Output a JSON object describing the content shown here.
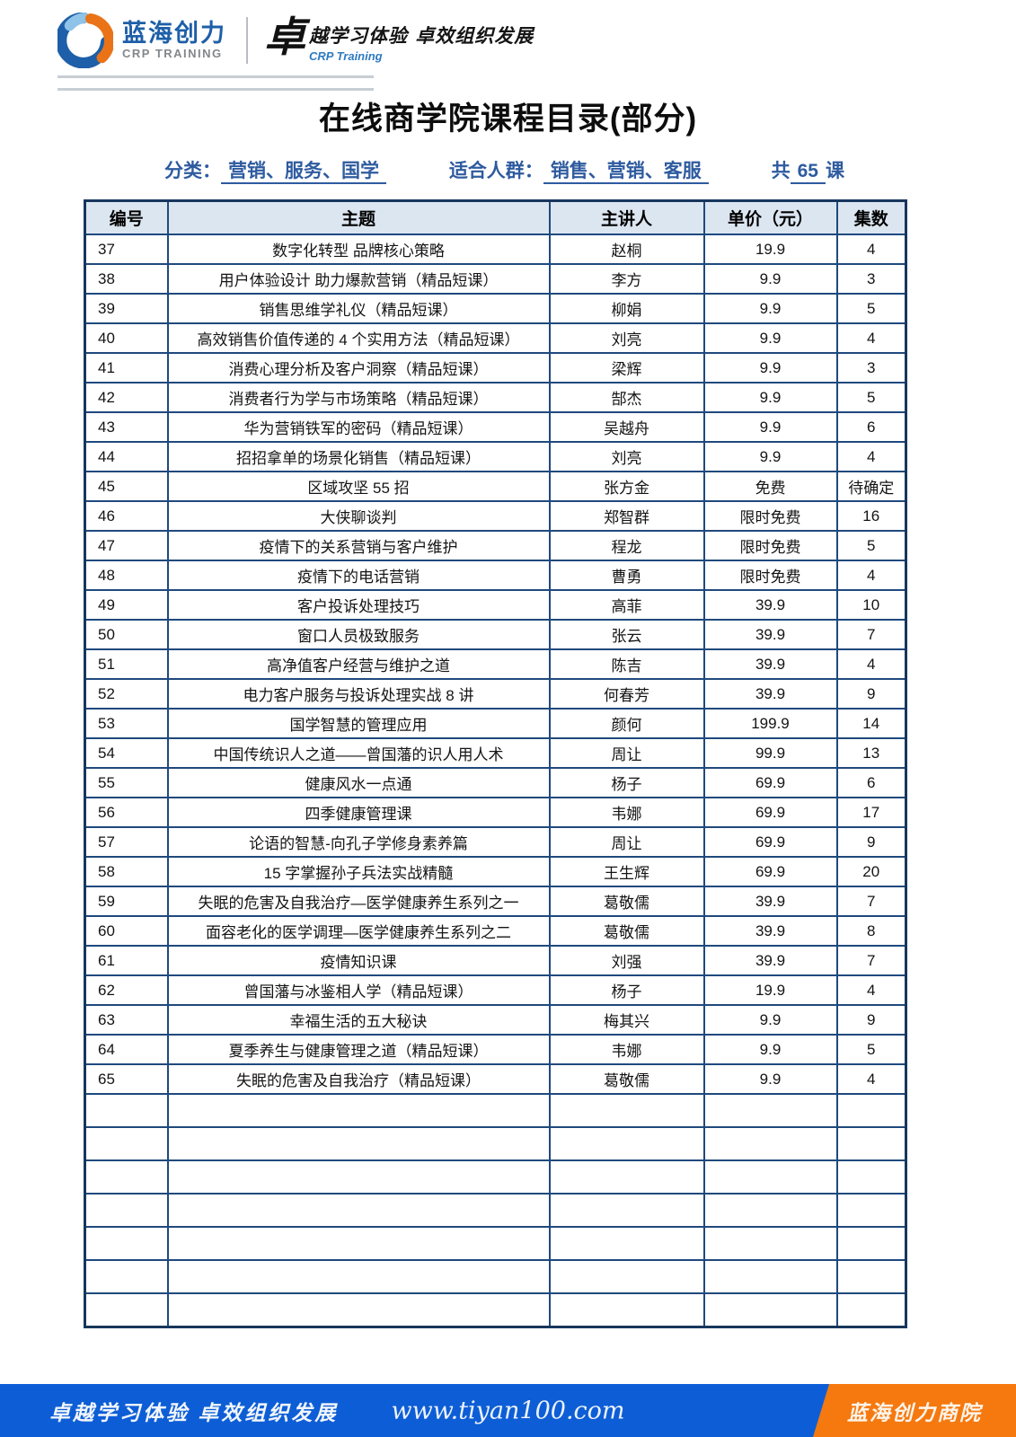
{
  "header": {
    "logo": {
      "name_cn": "蓝海创力",
      "name_en": "CRP TRAINING"
    },
    "slogan": {
      "big_char": "卓",
      "text": "越学习体验 卓效组织发展",
      "sub": "CRP Training"
    }
  },
  "title": "在线商学院课程目录(部分)",
  "meta": {
    "category_label": "分类：",
    "category_value": "营销、服务、国学",
    "audience_label": "适合人群：",
    "audience_value": "销售、营销、客服",
    "total_prefix": "共",
    "total_count": "65",
    "total_suffix": "课"
  },
  "table": {
    "columns": [
      "编号",
      "主题",
      "主讲人",
      "单价（元）",
      "集数"
    ],
    "rows": [
      [
        "37",
        "数字化转型 品牌核心策略",
        "赵桐",
        "19.9",
        "4"
      ],
      [
        "38",
        "用户体验设计 助力爆款营销（精品短课）",
        "李方",
        "9.9",
        "3"
      ],
      [
        "39",
        "销售思维学礼仪（精品短课）",
        "柳娟",
        "9.9",
        "5"
      ],
      [
        "40",
        "高效销售价值传递的 4 个实用方法（精品短课）",
        "刘亮",
        "9.9",
        "4"
      ],
      [
        "41",
        "消费心理分析及客户洞察（精品短课）",
        "梁辉",
        "9.9",
        "3"
      ],
      [
        "42",
        "消费者行为学与市场策略（精品短课）",
        "郜杰",
        "9.9",
        "5"
      ],
      [
        "43",
        "华为营销铁军的密码（精品短课）",
        "吴越舟",
        "9.9",
        "6"
      ],
      [
        "44",
        "招招拿单的场景化销售（精品短课）",
        "刘亮",
        "9.9",
        "4"
      ],
      [
        "45",
        "区域攻坚 55 招",
        "张方金",
        "免费",
        "待确定"
      ],
      [
        "46",
        "大侠聊谈判",
        "郑智群",
        "限时免费",
        "16"
      ],
      [
        "47",
        "疫情下的关系营销与客户维护",
        "程龙",
        "限时免费",
        "5"
      ],
      [
        "48",
        "疫情下的电话营销",
        "曹勇",
        "限时免费",
        "4"
      ],
      [
        "49",
        "客户投诉处理技巧",
        "高菲",
        "39.9",
        "10"
      ],
      [
        "50",
        "窗口人员极致服务",
        "张云",
        "39.9",
        "7"
      ],
      [
        "51",
        "高净值客户经营与维护之道",
        "陈吉",
        "39.9",
        "4"
      ],
      [
        "52",
        "电力客户服务与投诉处理实战 8 讲",
        "何春芳",
        "39.9",
        "9"
      ],
      [
        "53",
        "国学智慧的管理应用",
        "颜何",
        "199.9",
        "14"
      ],
      [
        "54",
        "中国传统识人之道——曾国藩的识人用人术",
        "周让",
        "99.9",
        "13"
      ],
      [
        "55",
        "健康风水一点通",
        "杨子",
        "69.9",
        "6"
      ],
      [
        "56",
        "四季健康管理课",
        "韦娜",
        "69.9",
        "17"
      ],
      [
        "57",
        "论语的智慧-向孔子学修身素养篇",
        "周让",
        "69.9",
        "9"
      ],
      [
        "58",
        "15 字掌握孙子兵法实战精髓",
        "王生辉",
        "69.9",
        "20"
      ],
      [
        "59",
        "失眠的危害及自我治疗—医学健康养生系列之一",
        "葛敬儒",
        "39.9",
        "7"
      ],
      [
        "60",
        "面容老化的医学调理—医学健康养生系列之二",
        "葛敬儒",
        "39.9",
        "8"
      ],
      [
        "61",
        "疫情知识课",
        "刘强",
        "39.9",
        "7"
      ],
      [
        "62",
        "曾国藩与冰鉴相人学（精品短课）",
        "杨子",
        "19.9",
        "4"
      ],
      [
        "63",
        "幸福生活的五大秘诀",
        "梅其兴",
        "9.9",
        "9"
      ],
      [
        "64",
        "夏季养生与健康管理之道（精品短课）",
        "韦娜",
        "9.9",
        "5"
      ],
      [
        "65",
        "失眠的危害及自我治疗（精品短课）",
        "葛敬儒",
        "9.9",
        "4"
      ]
    ],
    "empty_row_count": 7
  },
  "footer": {
    "slogan": "卓越学习体验  卓效组织发展",
    "url": "www.tiyan100.com",
    "badge": "蓝海创力商院"
  },
  "colors": {
    "accent_blue": "#2e5b9f",
    "table_border": "#1f497d",
    "table_border_outer": "#17365d",
    "header_bg": "#dce6f1",
    "footer_blue": "#0d5ed6",
    "footer_orange": "#f5790f",
    "logo_blue": "#1d5fa8",
    "logo_light_blue": "#8fc3e8",
    "logo_orange": "#ea7317",
    "rule_gray": "#c9ced4"
  }
}
